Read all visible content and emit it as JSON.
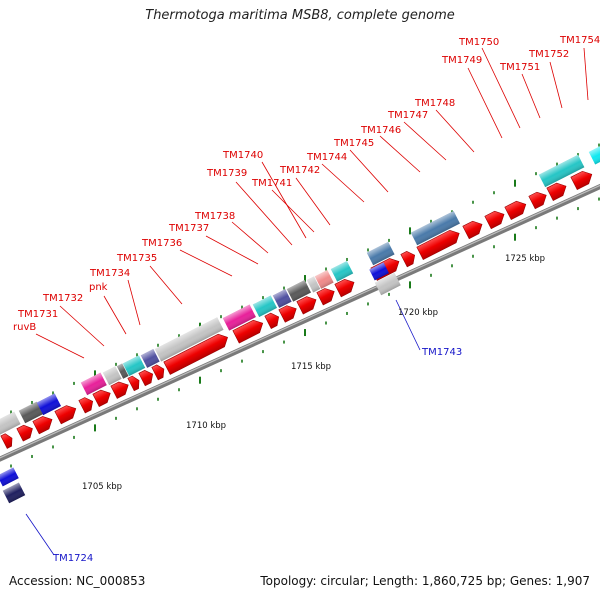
{
  "title": "Thermotoga maritima MSB8, complete genome",
  "footer": {
    "accession": "Accession: NC_000853",
    "stats": "Topology: circular; Length: 1,860,725 bp; Genes: 1,907"
  },
  "scale_labels": [
    "1705 kbp",
    "1710 kbp",
    "1715 kbp",
    "1720 kbp",
    "1725 kbp"
  ],
  "gene_labels_red": [
    "TM1731",
    "ruvB",
    "TM1732",
    "pnk",
    "TM1734",
    "TM1735",
    "TM1736",
    "TM1737",
    "TM1738",
    "TM1739",
    "TM1740",
    "TM1741",
    "TM1742",
    "TM1744",
    "TM1745",
    "TM1746",
    "TM1747",
    "TM1748",
    "TM1749",
    "TM1750",
    "TM1751",
    "TM1752",
    "TM1754"
  ],
  "gene_labels_blue": [
    "TM1743",
    "TM1724"
  ],
  "colors": {
    "forward_gene": "#ee0000",
    "label_red": "#dd0000",
    "label_blue": "#1515c8",
    "backbone": "#7a7a7a",
    "tick": "#1a7a1a",
    "magenta": "#e8209a",
    "cyan": "#26c6c6",
    "light_gray": "#c4c4c4",
    "dark_gray": "#5a5a5a",
    "steel_blue": "#4a7aaa",
    "navy": "#202060",
    "blue": "#1010d8",
    "slate": "#5050a0",
    "pink": "#f08a8a",
    "aqua": "#10e8f0"
  }
}
